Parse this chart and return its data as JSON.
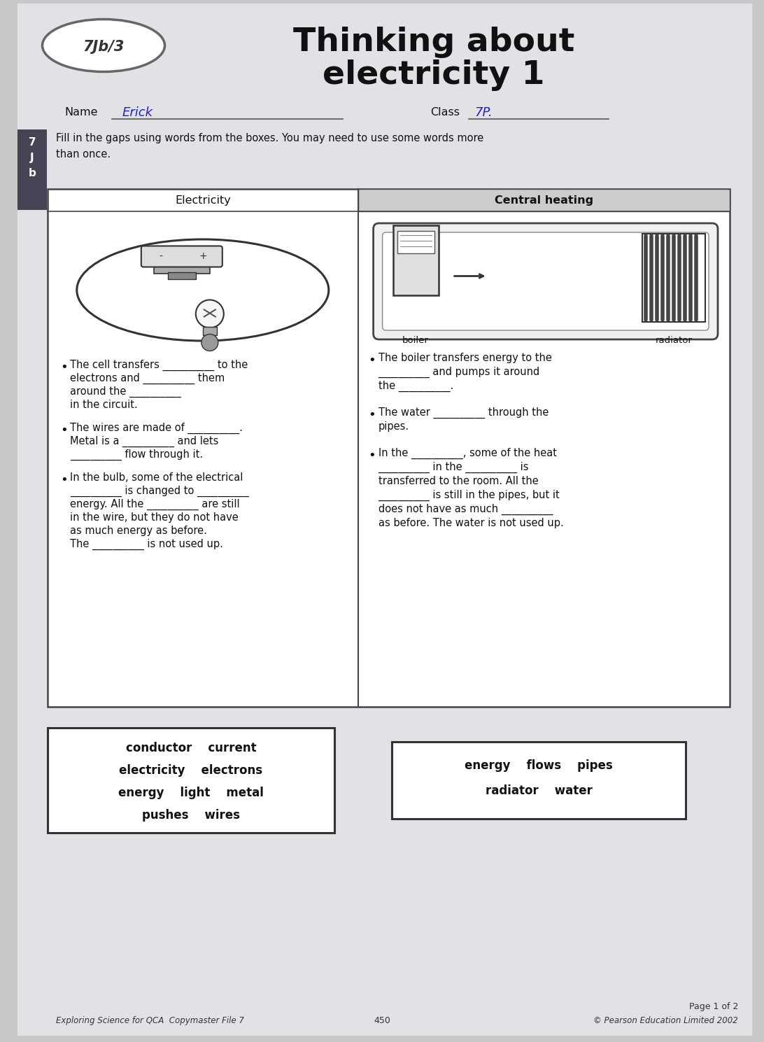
{
  "title_line1": "Thinking about",
  "title_line2": "electricity 1",
  "badge_text": "7Jb/3",
  "name_label": "Name",
  "name_value": "Erick",
  "class_label": "Class",
  "class_value": "7P.",
  "instruction": "Fill in the gaps using words from the boxes. You may need to use some words more\nthan once.",
  "col1_header": "Electricity",
  "col2_header": "Central heating",
  "col1_bullet1_lines": [
    "The cell transfers __________ to the",
    "electrons and __________ them",
    "around the __________",
    "in the circuit."
  ],
  "col1_bullet2_lines": [
    "The wires are made of __________.",
    "Metal is a __________ and lets",
    "__________ flow through it."
  ],
  "col1_bullet3_lines": [
    "In the bulb, some of the electrical",
    "__________ is changed to __________",
    "energy. All the __________ are still",
    "in the wire, but they do not have",
    "as much energy as before.",
    "The __________ is not used up."
  ],
  "col2_bullet1_lines": [
    "The boiler transfers energy to the",
    "__________ and pumps it around",
    "the __________."
  ],
  "col2_bullet2_lines": [
    "The water __________ through the",
    "pipes."
  ],
  "col2_bullet3_lines": [
    "In the __________, some of the heat",
    "__________ in the __________ is",
    "transferred to the room. All the",
    "__________ is still in the pipes, but it",
    "does not have as much __________",
    "as before. The water is not used up."
  ],
  "box1_words": [
    "conductor    current",
    "electricity    electrons",
    "energy    light    metal",
    "pushes    wires"
  ],
  "box2_words": [
    "energy    flows    pipes",
    "radiator    water"
  ],
  "footer_left": "Exploring Science for QCA  Copymaster File 7",
  "footer_center": "450",
  "footer_right": "© Pearson Education Limited 2002",
  "page_label": "Page 1 of 2",
  "side_label": "7\nJ\nb",
  "bg_color": "#c8c8c8",
  "paper_color": "#e2e2e6",
  "table_bg": "#e8e8e8"
}
